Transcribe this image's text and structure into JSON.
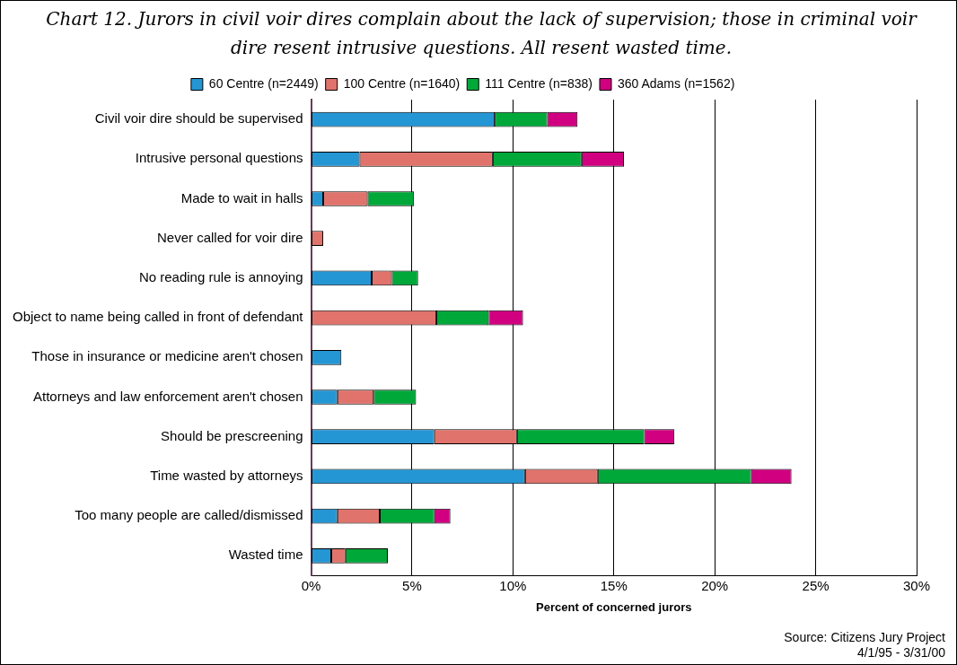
{
  "chart_data": {
    "type": "bar",
    "orientation": "horizontal",
    "stacked": true,
    "title": "Chart 12. Jurors in civil voir dires complain about the lack of supervision; those in criminal voir dire resent intrusive questions. All resent wasted time.",
    "xlabel": "Percent of concerned jurors",
    "categories": [
      "Civil voir dire should be supervised",
      "Intrusive personal questions",
      "Made to wait in halls",
      "Never called for voir dire",
      "No reading rule is annoying",
      "Object to name being called in front of defendant",
      "Those in insurance or medicine aren't chosen",
      "Attorneys and law enforcement aren't chosen",
      "Should be prescreening",
      "Time wasted by attorneys",
      "Too many people are called/dismissed",
      "Wasted time"
    ],
    "series": [
      {
        "name": "60 Centre (n=2449)",
        "color": "#2596d4",
        "values": [
          9.1,
          2.4,
          0.6,
          null,
          3.0,
          null,
          1.5,
          1.3,
          6.1,
          10.6,
          1.3,
          1.0
        ]
      },
      {
        "name": "100 Centre (n=1640)",
        "color": "#e0736b",
        "values": [
          null,
          6.6,
          2.2,
          0.6,
          1.0,
          6.2,
          null,
          1.8,
          4.1,
          3.6,
          2.1,
          0.7
        ]
      },
      {
        "name": "111 Centre (n=838)",
        "color": "#00a83a",
        "values": [
          2.6,
          4.4,
          2.3,
          null,
          1.3,
          2.6,
          null,
          2.1,
          6.3,
          7.6,
          2.7,
          2.1
        ]
      },
      {
        "name": "360 Adams (n=1562)",
        "color": "#d10080",
        "values": [
          1.5,
          2.1,
          null,
          null,
          null,
          1.7,
          null,
          null,
          1.5,
          2.0,
          0.8,
          null
        ]
      }
    ],
    "xlim": [
      0,
      30
    ],
    "xticks": [
      {
        "value": 0,
        "label": "0%"
      },
      {
        "value": 5,
        "label": "5%"
      },
      {
        "value": 10,
        "label": "10%"
      },
      {
        "value": 15,
        "label": "15%"
      },
      {
        "value": 20,
        "label": "20%"
      },
      {
        "value": 25,
        "label": "25%"
      },
      {
        "value": 30,
        "label": "30%"
      }
    ],
    "grid": "x",
    "legend": "top",
    "annotations": [
      "Source: Citizens Jury Project",
      "4/1/95 - 3/31/00"
    ]
  }
}
